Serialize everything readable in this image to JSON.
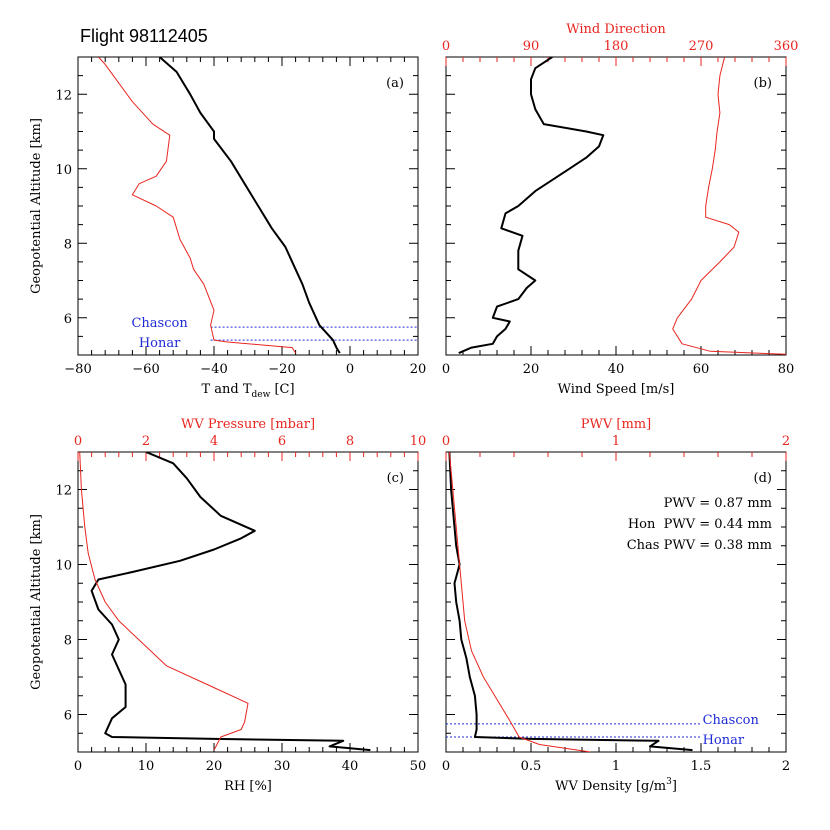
{
  "title": "Flight 98112405",
  "colors": {
    "black": "#000000",
    "red": "#e8251f",
    "blue": "#1f2bd6"
  },
  "chart_data": [
    {
      "id": "a",
      "type": "line",
      "panel_label": "(a)",
      "xlabel_main": "T and T",
      "xlabel_sub": "dew",
      "xlabel_end": " [C]",
      "ylabel": "Geopotential Altitude [km]",
      "xlim": [
        -80,
        20
      ],
      "ylim": [
        5,
        13
      ],
      "xticks": [
        -80,
        -60,
        -40,
        -20,
        0,
        20
      ],
      "yticks": [
        6,
        8,
        10,
        12
      ],
      "hlines": [
        {
          "y": 5.75,
          "label": "Chascon"
        },
        {
          "y": 5.4,
          "label": "Honar"
        }
      ],
      "series": [
        {
          "color": "black",
          "width": 2,
          "points": [
            [
              -3,
              5.05
            ],
            [
              -4,
              5.2
            ],
            [
              -5,
              5.4
            ],
            [
              -9,
              5.8
            ],
            [
              -12,
              6.4
            ],
            [
              -14,
              6.9
            ],
            [
              -17,
              7.5
            ],
            [
              -19,
              7.9
            ],
            [
              -23,
              8.4
            ],
            [
              -27,
              9.0
            ],
            [
              -31,
              9.6
            ],
            [
              -35,
              10.2
            ],
            [
              -40,
              10.8
            ],
            [
              -40,
              11.0
            ],
            [
              -44,
              11.5
            ],
            [
              -47,
              12.0
            ],
            [
              -51,
              12.6
            ],
            [
              -56,
              13
            ]
          ]
        },
        {
          "color": "red",
          "width": 1,
          "points": [
            [
              -16,
              5.05
            ],
            [
              -17,
              5.2
            ],
            [
              -36,
              5.35
            ],
            [
              -40,
              5.4
            ],
            [
              -41,
              5.8
            ],
            [
              -40,
              6.2
            ],
            [
              -43,
              6.9
            ],
            [
              -46,
              7.3
            ],
            [
              -47,
              7.6
            ],
            [
              -50,
              8.1
            ],
            [
              -52,
              8.7
            ],
            [
              -57,
              9.0
            ],
            [
              -64,
              9.3
            ],
            [
              -62,
              9.6
            ],
            [
              -57,
              9.8
            ],
            [
              -54,
              10.2
            ],
            [
              -53,
              10.9
            ],
            [
              -58,
              11.2
            ],
            [
              -64,
              11.8
            ],
            [
              -68,
              12.3
            ],
            [
              -72,
              12.8
            ],
            [
              -74,
              13
            ]
          ]
        }
      ]
    },
    {
      "id": "b",
      "type": "line",
      "panel_label": "(b)",
      "xlabel": "Wind Speed [m/s]",
      "top_label": "Wind Direction",
      "xlim": [
        0,
        80
      ],
      "ylim": [
        5,
        13
      ],
      "xticks": [
        0,
        20,
        40,
        60,
        80
      ],
      "top_lim": [
        0,
        360
      ],
      "top_ticks": [
        0,
        90,
        180,
        270,
        360
      ],
      "yticks": [
        6,
        8,
        10,
        12
      ],
      "series": [
        {
          "color": "black",
          "width": 2,
          "axis": "bottom",
          "points": [
            [
              3,
              5.05
            ],
            [
              6,
              5.2
            ],
            [
              11,
              5.3
            ],
            [
              12,
              5.5
            ],
            [
              14,
              5.7
            ],
            [
              15,
              5.9
            ],
            [
              11,
              6.0
            ],
            [
              12,
              6.3
            ],
            [
              17,
              6.5
            ],
            [
              19,
              6.8
            ],
            [
              21,
              7.0
            ],
            [
              17,
              7.3
            ],
            [
              17,
              7.8
            ],
            [
              18,
              8.2
            ],
            [
              13,
              8.4
            ],
            [
              14,
              8.8
            ],
            [
              17,
              9.0
            ],
            [
              21,
              9.4
            ],
            [
              25,
              9.7
            ],
            [
              29,
              10.0
            ],
            [
              33,
              10.3
            ],
            [
              36,
              10.6
            ],
            [
              37,
              10.9
            ],
            [
              33,
              11.0
            ],
            [
              23,
              11.2
            ],
            [
              21,
              11.6
            ],
            [
              20,
              12.0
            ],
            [
              20,
              12.4
            ],
            [
              21,
              12.7
            ],
            [
              25,
              13
            ]
          ]
        },
        {
          "color": "red",
          "width": 1,
          "axis": "top",
          "points": [
            [
              360,
              5.02
            ],
            [
              280,
              5.1
            ],
            [
              250,
              5.3
            ],
            [
              240,
              5.7
            ],
            [
              245,
              6.0
            ],
            [
              260,
              6.5
            ],
            [
              270,
              7.0
            ],
            [
              290,
              7.5
            ],
            [
              305,
              7.9
            ],
            [
              310,
              8.3
            ],
            [
              300,
              8.5
            ],
            [
              275,
              8.7
            ],
            [
              275,
              9.0
            ],
            [
              278,
              9.5
            ],
            [
              282,
              10.0
            ],
            [
              285,
              10.5
            ],
            [
              287,
              11.0
            ],
            [
              290,
              11.5
            ],
            [
              288,
              12.0
            ],
            [
              290,
              12.5
            ],
            [
              295,
              13
            ]
          ]
        }
      ]
    },
    {
      "id": "c",
      "type": "line",
      "panel_label": "(c)",
      "xlabel": "RH [%]",
      "ylabel": "Geopotential Altitude [km]",
      "top_label": "WV Pressure [mbar]",
      "xlim": [
        0,
        50
      ],
      "ylim": [
        5,
        13
      ],
      "xticks": [
        0,
        10,
        20,
        30,
        40,
        50
      ],
      "top_lim": [
        0,
        10
      ],
      "top_ticks": [
        0,
        2,
        4,
        6,
        8,
        10
      ],
      "yticks": [
        6,
        8,
        10,
        12
      ],
      "series": [
        {
          "color": "black",
          "width": 2,
          "axis": "bottom",
          "points": [
            [
              43,
              5.05
            ],
            [
              37,
              5.15
            ],
            [
              39,
              5.3
            ],
            [
              20,
              5.35
            ],
            [
              5,
              5.4
            ],
            [
              4,
              5.5
            ],
            [
              5,
              5.9
            ],
            [
              7,
              6.2
            ],
            [
              7,
              6.8
            ],
            [
              6,
              7.2
            ],
            [
              5,
              7.6
            ],
            [
              6,
              8.0
            ],
            [
              5,
              8.4
            ],
            [
              3,
              8.8
            ],
            [
              2,
              9.3
            ],
            [
              3,
              9.6
            ],
            [
              8,
              9.8
            ],
            [
              15,
              10.1
            ],
            [
              20,
              10.4
            ],
            [
              24,
              10.7
            ],
            [
              26,
              10.9
            ],
            [
              21,
              11.3
            ],
            [
              18,
              11.8
            ],
            [
              16,
              12.3
            ],
            [
              14,
              12.7
            ],
            [
              10,
              13
            ]
          ]
        },
        {
          "color": "red",
          "width": 1,
          "axis": "top",
          "points": [
            [
              4.0,
              5.05
            ],
            [
              4.2,
              5.4
            ],
            [
              4.8,
              5.6
            ],
            [
              4.9,
              5.8
            ],
            [
              5.0,
              6.3
            ],
            [
              3.8,
              6.8
            ],
            [
              2.6,
              7.3
            ],
            [
              1.9,
              7.9
            ],
            [
              1.2,
              8.5
            ],
            [
              0.8,
              9.0
            ],
            [
              0.5,
              9.6
            ],
            [
              0.3,
              10.3
            ],
            [
              0.2,
              11.0
            ],
            [
              0.1,
              12.0
            ],
            [
              0.05,
              13
            ]
          ]
        }
      ]
    },
    {
      "id": "d",
      "type": "line",
      "panel_label": "(d)",
      "xlabel_main": "WV Density [g/m",
      "xlabel_sup": "3",
      "xlabel_end": "]",
      "top_label": "PWV [mm]",
      "xlim": [
        0,
        2
      ],
      "ylim": [
        5,
        13
      ],
      "xticks": [
        0,
        0.5,
        1,
        1.5,
        2
      ],
      "xtick_labels": [
        "0",
        "0.5",
        "1",
        "1.5",
        "2"
      ],
      "top_lim": [
        0,
        2
      ],
      "top_ticks": [
        0,
        1,
        2
      ],
      "yticks": [
        6,
        8,
        10,
        12
      ],
      "annotations": [
        "PWV = 0.87 mm",
        "Hon  PWV = 0.44 mm",
        "Chas PWV = 0.38 mm"
      ],
      "hlines": [
        {
          "y": 5.75,
          "label": "Chascon"
        },
        {
          "y": 5.4,
          "label": "Honar"
        }
      ],
      "series": [
        {
          "color": "black",
          "width": 2,
          "axis": "bottom",
          "points": [
            [
              1.45,
              5.05
            ],
            [
              1.2,
              5.15
            ],
            [
              1.25,
              5.3
            ],
            [
              0.5,
              5.35
            ],
            [
              0.17,
              5.4
            ],
            [
              0.18,
              5.6
            ],
            [
              0.18,
              6.0
            ],
            [
              0.17,
              6.5
            ],
            [
              0.14,
              7.0
            ],
            [
              0.12,
              7.5
            ],
            [
              0.09,
              8.0
            ],
            [
              0.08,
              8.5
            ],
            [
              0.06,
              9.0
            ],
            [
              0.05,
              9.5
            ],
            [
              0.08,
              10.0
            ],
            [
              0.06,
              10.5
            ],
            [
              0.05,
              11.0
            ],
            [
              0.04,
              11.5
            ],
            [
              0.03,
              12.0
            ],
            [
              0.02,
              13
            ]
          ]
        },
        {
          "color": "red",
          "width": 1,
          "axis": "bottom",
          "points": [
            [
              0.85,
              5.0
            ],
            [
              0.55,
              5.2
            ],
            [
              0.43,
              5.4
            ],
            [
              0.38,
              5.8
            ],
            [
              0.3,
              6.4
            ],
            [
              0.22,
              7.0
            ],
            [
              0.15,
              7.7
            ],
            [
              0.11,
              8.5
            ],
            [
              0.09,
              9.5
            ],
            [
              0.07,
              10.5
            ],
            [
              0.05,
              11.5
            ],
            [
              0.03,
              12.5
            ],
            [
              0.02,
              13
            ]
          ]
        }
      ]
    }
  ]
}
